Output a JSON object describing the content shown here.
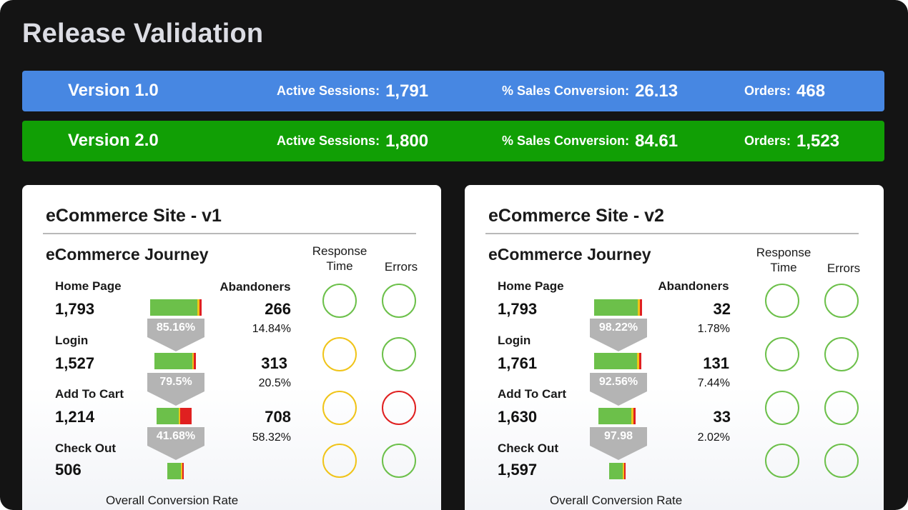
{
  "page": {
    "title": "Release Validation"
  },
  "versions": [
    {
      "name": "Version 1.0",
      "color": "#4787e2",
      "sessions_label": "Active Sessions:",
      "sessions_value": "1,791",
      "conversion_label": "% Sales Conversion:",
      "conversion_value": "26.13",
      "orders_label": "Orders:",
      "orders_value": "468"
    },
    {
      "name": "Version 2.0",
      "color": "#119f05",
      "sessions_label": "Active Sessions:",
      "sessions_value": "1,800",
      "conversion_label": "% Sales Conversion:",
      "conversion_value": "84.61",
      "orders_label": "Orders:",
      "orders_value": "1,523"
    }
  ],
  "panels": [
    {
      "title": "eCommerce Site - v1",
      "journey_title": "eCommerce Journey",
      "response_time_header": "Response Time",
      "errors_header": "Errors",
      "abandoners_header": "Abandoners",
      "overall_label": "Overall Conversion Rate",
      "stages": [
        {
          "name": "Home Page",
          "count": "1,793",
          "abandoners": "266",
          "abandon_pct": "14.84%",
          "conversion": "85.16%",
          "response": "green",
          "errors": "green"
        },
        {
          "name": "Login",
          "count": "1,527",
          "abandoners": "313",
          "abandon_pct": "20.5%",
          "conversion": "79.5%",
          "response": "yellow",
          "errors": "green"
        },
        {
          "name": "Add To Cart",
          "count": "1,214",
          "abandoners": "708",
          "abandon_pct": "58.32%",
          "conversion": "41.68%",
          "response": "yellow",
          "errors": "red"
        },
        {
          "name": "Check Out",
          "count": "506",
          "response": "yellow",
          "errors": "green"
        }
      ]
    },
    {
      "title": "eCommerce Site - v2",
      "journey_title": "eCommerce Journey",
      "response_time_header": "Response Time",
      "errors_header": "Errors",
      "abandoners_header": "Abandoners",
      "overall_label": "Overall Conversion Rate",
      "stages": [
        {
          "name": "Home Page",
          "count": "1,793",
          "abandoners": "32",
          "abandon_pct": "1.78%",
          "conversion": "98.22%",
          "response": "green",
          "errors": "green"
        },
        {
          "name": "Login",
          "count": "1,761",
          "abandoners": "131",
          "abandon_pct": "7.44%",
          "conversion": "92.56%",
          "response": "green",
          "errors": "green"
        },
        {
          "name": "Add To Cart",
          "count": "1,630",
          "abandoners": "33",
          "abandon_pct": "2.02%",
          "conversion": "97.98",
          "response": "green",
          "errors": "green"
        },
        {
          "name": "Check Out",
          "count": "1,597",
          "response": "green",
          "errors": "green"
        }
      ]
    }
  ],
  "status_colors": {
    "green": "#6cc04a",
    "yellow": "#f0c419",
    "red": "#e02020"
  }
}
